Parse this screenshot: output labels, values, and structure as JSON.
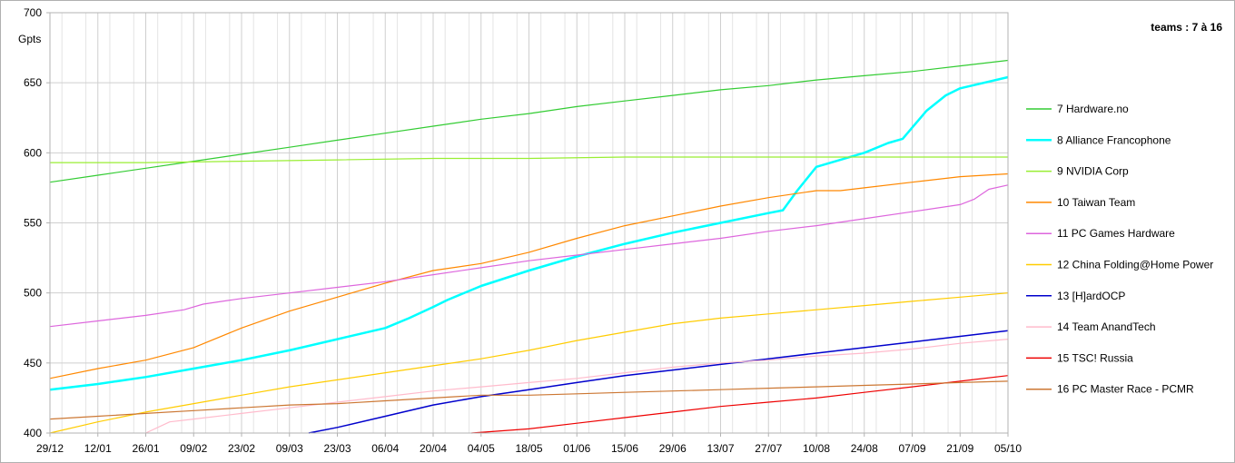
{
  "chart_data": {
    "type": "line",
    "title": "teams : 7 à 16",
    "ylabel": "Gpts",
    "ylim": [
      400,
      700
    ],
    "yticks": [
      400,
      450,
      500,
      550,
      600,
      650,
      700
    ],
    "x_labels": [
      "29/12",
      "12/01",
      "26/01",
      "09/02",
      "23/02",
      "09/03",
      "23/03",
      "06/04",
      "20/04",
      "04/05",
      "18/05",
      "01/06",
      "15/06",
      "29/06",
      "13/07",
      "27/07",
      "10/08",
      "24/08",
      "07/09",
      "21/09",
      "05/10"
    ],
    "grid": true,
    "legend_position": "right",
    "series": [
      {
        "name": "7 Hardware.no",
        "color": "#33cc33",
        "width": 1.2,
        "x": [
          0,
          1,
          2,
          3,
          4,
          5,
          6,
          7,
          8,
          9,
          10,
          11,
          12,
          13,
          14,
          15,
          16,
          17,
          18,
          19,
          20
        ],
        "y": [
          579,
          584,
          589,
          594,
          599,
          604,
          609,
          614,
          619,
          624,
          628,
          633,
          637,
          641,
          645,
          648,
          652,
          655,
          658,
          662,
          666
        ]
      },
      {
        "name": "8 Alliance Francophone",
        "color": "#00ffff",
        "width": 2.5,
        "x": [
          0,
          1,
          2,
          3,
          4,
          5,
          6,
          7,
          7.5,
          8,
          8.3,
          9,
          10,
          11,
          12,
          13,
          14,
          15,
          15.3,
          15.6,
          16,
          17,
          17.5,
          17.8,
          18,
          18.3,
          18.7,
          19,
          20
        ],
        "y": [
          431,
          435,
          440,
          446,
          452,
          459,
          467,
          475,
          482,
          490,
          495,
          505,
          516,
          526,
          535,
          543,
          550,
          557,
          559,
          573,
          590,
          600,
          607,
          610,
          618,
          630,
          641,
          646,
          654
        ]
      },
      {
        "name": "9 NVIDIA Corp",
        "color": "#99ee33",
        "width": 1.2,
        "x": [
          0,
          2,
          4,
          6,
          8,
          10,
          12,
          14,
          16,
          18,
          20
        ],
        "y": [
          593,
          593,
          594,
          595,
          596,
          596,
          597,
          597,
          597,
          597,
          597
        ]
      },
      {
        "name": "10 Taiwan Team",
        "color": "#ff8800",
        "width": 1.2,
        "x": [
          0,
          1,
          2,
          3,
          4,
          5,
          6,
          7,
          8,
          9,
          10,
          11,
          12,
          13,
          14,
          15,
          16,
          16.5,
          17,
          18,
          19,
          20
        ],
        "y": [
          439,
          446,
          452,
          461,
          475,
          487,
          497,
          507,
          516,
          521,
          529,
          539,
          548,
          555,
          562,
          568,
          573,
          573,
          575,
          579,
          583,
          585
        ]
      },
      {
        "name": "11 PC Games Hardware",
        "color": "#dd66dd",
        "width": 1.2,
        "x": [
          0,
          1,
          2,
          2.8,
          3.2,
          4,
          5,
          6,
          7,
          8,
          9,
          10,
          11,
          12,
          13,
          14,
          15,
          16,
          17,
          18,
          19,
          19.3,
          19.6,
          20
        ],
        "y": [
          476,
          480,
          484,
          488,
          492,
          496,
          500,
          504,
          508,
          513,
          518,
          523,
          527,
          531,
          535,
          539,
          544,
          548,
          553,
          558,
          563,
          567,
          574,
          577
        ]
      },
      {
        "name": "12 China Folding@Home Power",
        "color": "#ffcc00",
        "width": 1.2,
        "x": [
          0,
          1,
          2,
          3,
          4,
          5,
          6,
          7,
          8,
          9,
          10,
          11,
          12,
          13,
          14,
          15,
          16,
          17,
          18,
          19,
          20
        ],
        "y": [
          400,
          408,
          415,
          421,
          427,
          433,
          438,
          443,
          448,
          453,
          459,
          466,
          472,
          478,
          482,
          485,
          488,
          491,
          494,
          497,
          500
        ]
      },
      {
        "name": "13 [H]ardOCP",
        "color": "#0000cc",
        "width": 1.5,
        "x": [
          5.4,
          6,
          7,
          8,
          9,
          10,
          11,
          12,
          13,
          14,
          15,
          16,
          17,
          18,
          19,
          20
        ],
        "y": [
          400,
          404,
          412,
          420,
          426,
          431,
          436,
          441,
          445,
          449,
          453,
          457,
          461,
          465,
          469,
          473
        ]
      },
      {
        "name": "14 Team AnandTech",
        "color": "#ffbbcc",
        "width": 1.2,
        "x": [
          2,
          2.5,
          3,
          4,
          5,
          6,
          7,
          8,
          9,
          10,
          11,
          12,
          13,
          14,
          15,
          16,
          17,
          18,
          19,
          20
        ],
        "y": [
          400,
          408,
          410,
          414,
          418,
          422,
          426,
          430,
          433,
          436,
          439,
          443,
          447,
          450,
          452,
          455,
          457,
          460,
          464,
          467
        ]
      },
      {
        "name": "15 TSC! Russia",
        "color": "#ee0000",
        "width": 1.2,
        "x": [
          8.8,
          10,
          11,
          12,
          13,
          14,
          15,
          16,
          17,
          18,
          19,
          20
        ],
        "y": [
          400,
          403,
          407,
          411,
          415,
          419,
          422,
          425,
          429,
          433,
          437,
          441
        ]
      },
      {
        "name": "16 PC Master Race - PCMR",
        "color": "#cc7733",
        "width": 1.2,
        "x": [
          0,
          1,
          2,
          3,
          4,
          5,
          6,
          7,
          8,
          9,
          10,
          11,
          12,
          13,
          14,
          15,
          16,
          17,
          18,
          19,
          20
        ],
        "y": [
          410,
          412,
          414,
          416,
          418,
          420,
          421,
          423,
          425,
          427,
          427,
          428,
          429,
          430,
          431,
          432,
          433,
          434,
          435,
          436,
          437
        ]
      }
    ]
  }
}
